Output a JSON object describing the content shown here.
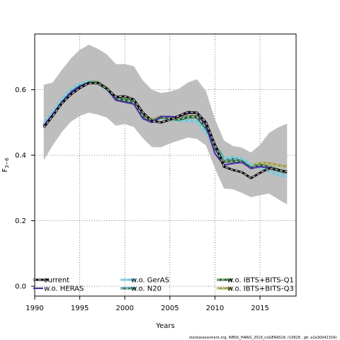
{
  "chart_data": {
    "type": "line",
    "xlabel": "Years",
    "ylabel": "F",
    "ylabel_sub": "3−6",
    "xlim": [
      1990,
      2019
    ],
    "ylim": [
      -0.03,
      0.77
    ],
    "xticks": [
      1990,
      1995,
      2000,
      2005,
      2010,
      2015
    ],
    "yticks": [
      0.0,
      0.2,
      0.4,
      0.6
    ],
    "ytick_labels": [
      "0.0",
      "0.2",
      "0.4",
      "0.6"
    ],
    "grid": true,
    "legend_placement": "bottom",
    "footer": "stockassessment.org,  WBSS_HAWG_2019_noGERAS18,  r10828 ,  git:  e2a30d42316c",
    "x": [
      1991,
      1992,
      1993,
      1994,
      1995,
      1996,
      1997,
      1998,
      1999,
      2000,
      2001,
      2002,
      2003,
      2004,
      2005,
      2006,
      2007,
      2008,
      2009,
      2010,
      2011,
      2012,
      2013,
      2014,
      2015,
      2016,
      2017,
      2018
    ],
    "band": {
      "upper": [
        0.615,
        0.622,
        0.66,
        0.695,
        0.722,
        0.737,
        0.725,
        0.708,
        0.678,
        0.678,
        0.672,
        0.628,
        0.6,
        0.59,
        0.594,
        0.603,
        0.622,
        0.632,
        0.596,
        0.51,
        0.445,
        0.428,
        0.423,
        0.408,
        0.432,
        0.468,
        0.485,
        0.496
      ],
      "lower": [
        0.385,
        0.43,
        0.47,
        0.502,
        0.52,
        0.53,
        0.524,
        0.515,
        0.49,
        0.495,
        0.486,
        0.452,
        0.425,
        0.424,
        0.436,
        0.445,
        0.454,
        0.45,
        0.43,
        0.36,
        0.298,
        0.296,
        0.285,
        0.272,
        0.278,
        0.283,
        0.266,
        0.25
      ],
      "color": "#bebebe"
    },
    "series": [
      {
        "name": "current",
        "color": "#000000",
        "style": "dash-halo",
        "values": [
          0.484,
          0.52,
          0.558,
          0.585,
          0.605,
          0.62,
          0.62,
          0.603,
          0.578,
          0.58,
          0.57,
          0.53,
          0.505,
          0.5,
          0.508,
          0.52,
          0.532,
          0.53,
          0.5,
          0.432,
          0.365,
          0.355,
          0.348,
          0.33,
          0.346,
          0.36,
          0.355,
          0.35
        ]
      },
      {
        "name": "w.o. HERAS",
        "color": "#4b2fa6",
        "style": "solid",
        "values": [
          0.49,
          0.525,
          0.562,
          0.592,
          0.61,
          0.622,
          0.62,
          0.603,
          0.568,
          0.562,
          0.556,
          0.512,
          0.5,
          0.518,
          0.518,
          0.516,
          0.528,
          0.528,
          0.492,
          0.405,
          0.37,
          0.375,
          0.378,
          0.36,
          0.365,
          0.362,
          0.355,
          0.35
        ]
      },
      {
        "name": "w.o. GerAS",
        "color": "#5fc8de",
        "style": "dash-halo",
        "values": [
          0.497,
          0.532,
          0.57,
          0.6,
          0.618,
          0.625,
          0.62,
          0.6,
          0.57,
          0.565,
          0.56,
          0.52,
          0.505,
          0.515,
          0.51,
          0.505,
          0.505,
          0.502,
          0.47,
          0.42,
          0.39,
          0.395,
          0.39,
          0.37,
          0.362,
          0.35,
          0.34,
          0.335
        ]
      },
      {
        "name": "w.o. N20",
        "color": "#1a7d78",
        "style": "dash-halo",
        "values": [
          0.49,
          0.524,
          0.562,
          0.592,
          0.612,
          0.624,
          0.622,
          0.604,
          0.574,
          0.57,
          0.565,
          0.524,
          0.505,
          0.515,
          0.512,
          0.508,
          0.515,
          0.515,
          0.482,
          0.43,
          0.39,
          0.388,
          0.382,
          0.36,
          0.368,
          0.362,
          0.352,
          0.346
        ]
      },
      {
        "name": "w.o. IBTS+BITS-Q1",
        "color": "#1b5e20",
        "style": "dash-halo",
        "values": [
          0.488,
          0.522,
          0.56,
          0.59,
          0.61,
          0.622,
          0.62,
          0.603,
          0.572,
          0.568,
          0.56,
          0.52,
          0.503,
          0.515,
          0.512,
          0.508,
          0.518,
          0.518,
          0.486,
          0.422,
          0.38,
          0.382,
          0.38,
          0.362,
          0.37,
          0.365,
          0.356,
          0.348
        ]
      },
      {
        "name": "w.o. IBTS+BITS-Q3",
        "color": "#9a9a28",
        "style": "dash-halo",
        "values": [
          0.495,
          0.528,
          0.565,
          0.593,
          0.614,
          0.625,
          0.624,
          0.606,
          0.576,
          0.572,
          0.566,
          0.526,
          0.508,
          0.518,
          0.516,
          0.512,
          0.522,
          0.52,
          0.49,
          0.43,
          0.39,
          0.388,
          0.386,
          0.368,
          0.376,
          0.376,
          0.37,
          0.365
        ]
      }
    ]
  }
}
